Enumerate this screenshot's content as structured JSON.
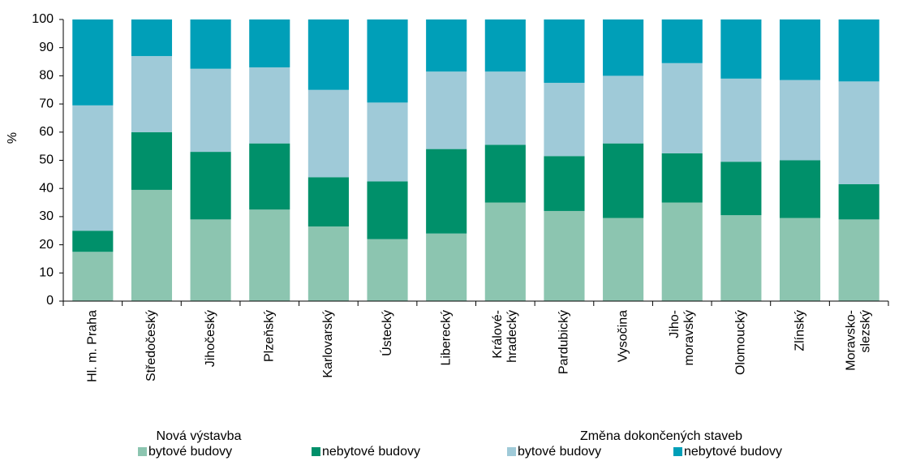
{
  "chart_data": {
    "type": "stacked_bar",
    "y_label": "%",
    "categories": [
      "Hl. m. Praha",
      "Středočeský",
      "Jihočeský",
      "Plzeňský",
      "Karlovarský",
      "Ústecký",
      "Liberecký",
      "Králové-\nhradecký",
      "Pardubický",
      "Vysočina",
      "Jiho-\nmoravský",
      "Olomoucký",
      "Zlínský",
      "Moravsko-\nslezský"
    ],
    "legend_groups": [
      "Nová výstavba",
      "Změna dokončených staveb"
    ],
    "series": [
      {
        "name": "bytové budovy",
        "color": "#8cc5b0",
        "values": [
          17.5,
          39.5,
          29,
          32.5,
          26.5,
          22,
          24,
          35,
          32,
          29.5,
          35,
          30.5,
          29.5,
          29
        ]
      },
      {
        "name": "nebytové budovy",
        "color": "#00906a",
        "values": [
          7.5,
          20.5,
          24,
          23.5,
          17.5,
          20.5,
          30,
          20.5,
          19.5,
          26.5,
          17.5,
          19,
          20.5,
          12.5
        ]
      },
      {
        "name": "bytové budovy",
        "color": "#9fcad8",
        "values": [
          44.5,
          27,
          29.5,
          27,
          31,
          28,
          27.5,
          26,
          26,
          24,
          32,
          29.5,
          28.5,
          36.5
        ]
      },
      {
        "name": "nebytové budovy",
        "color": "#009fb8",
        "values": [
          30.5,
          13,
          17.5,
          17,
          25,
          29.5,
          18.5,
          18.5,
          22.5,
          20,
          15.5,
          21,
          21.5,
          22
        ]
      }
    ],
    "ylim": [
      0,
      100
    ],
    "yticks": [
      0,
      10,
      20,
      30,
      40,
      50,
      60,
      70,
      80,
      90,
      100
    ],
    "grid": false
  }
}
